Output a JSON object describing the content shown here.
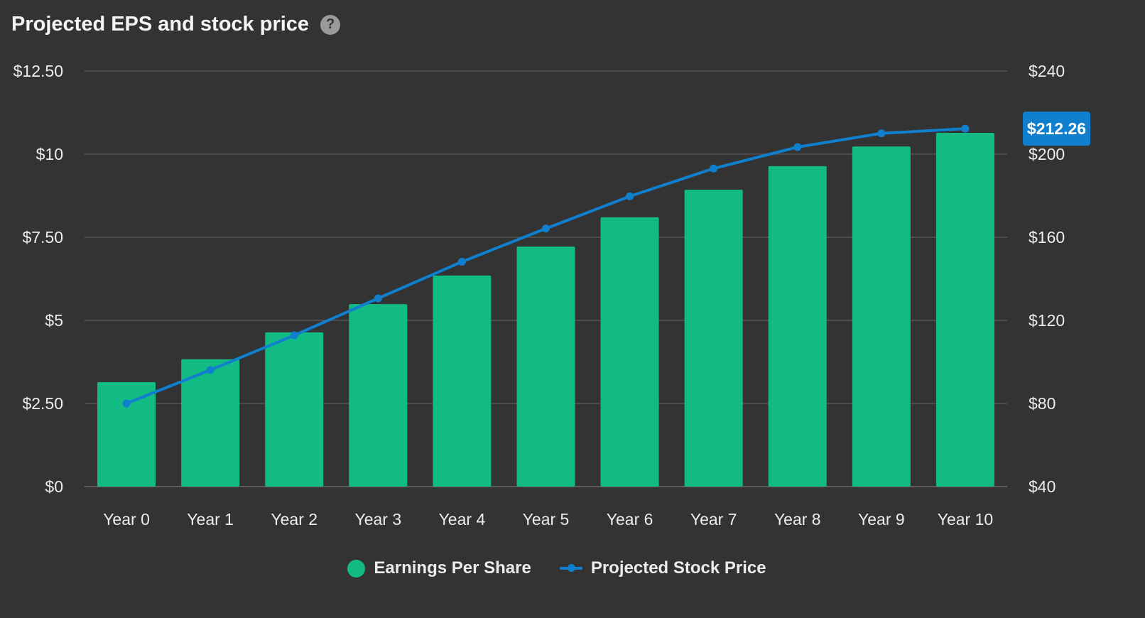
{
  "header": {
    "title": "Projected EPS and stock price",
    "help_icon": "question-circle-icon"
  },
  "colors": {
    "background": "#333333",
    "bar": "#12bb84",
    "line": "#0f7fce",
    "grid": "#555555",
    "badge": "#0f7fce"
  },
  "chart_data": {
    "type": "bar",
    "categories": [
      "Year 0",
      "Year 1",
      "Year 2",
      "Year 3",
      "Year 4",
      "Year 5",
      "Year 6",
      "Year 7",
      "Year 8",
      "Year 9",
      "Year 10"
    ],
    "series": [
      {
        "name": "Earnings Per Share",
        "type": "bar",
        "axis": "left",
        "values": [
          3.14,
          3.83,
          4.64,
          5.49,
          6.35,
          7.22,
          8.1,
          8.93,
          9.64,
          10.23,
          10.64
        ]
      },
      {
        "name": "Projected Stock Price",
        "type": "line",
        "axis": "right",
        "values": [
          80.0,
          96.1,
          112.8,
          130.6,
          148.2,
          164.2,
          179.7,
          193.1,
          203.4,
          210.0,
          212.26
        ]
      }
    ],
    "y_left": {
      "lim": [
        0,
        12.5
      ],
      "ticks": [
        0,
        2.5,
        5,
        7.5,
        10,
        12.5
      ],
      "tick_labels": [
        "$0",
        "$2.50",
        "$5",
        "$7.50",
        "$10",
        "$12.50"
      ]
    },
    "y_right": {
      "lim": [
        40,
        240
      ],
      "ticks": [
        40,
        80,
        120,
        160,
        200,
        240
      ],
      "tick_labels": [
        "$40",
        "$80",
        "$120",
        "$160",
        "$200",
        "$240"
      ]
    },
    "grid": true,
    "legend_position": "bottom-center",
    "last_value_badge": "$212.26"
  },
  "legend": [
    {
      "label": "Earnings Per Share",
      "swatch": "dot"
    },
    {
      "label": "Projected Stock Price",
      "swatch": "line"
    }
  ]
}
